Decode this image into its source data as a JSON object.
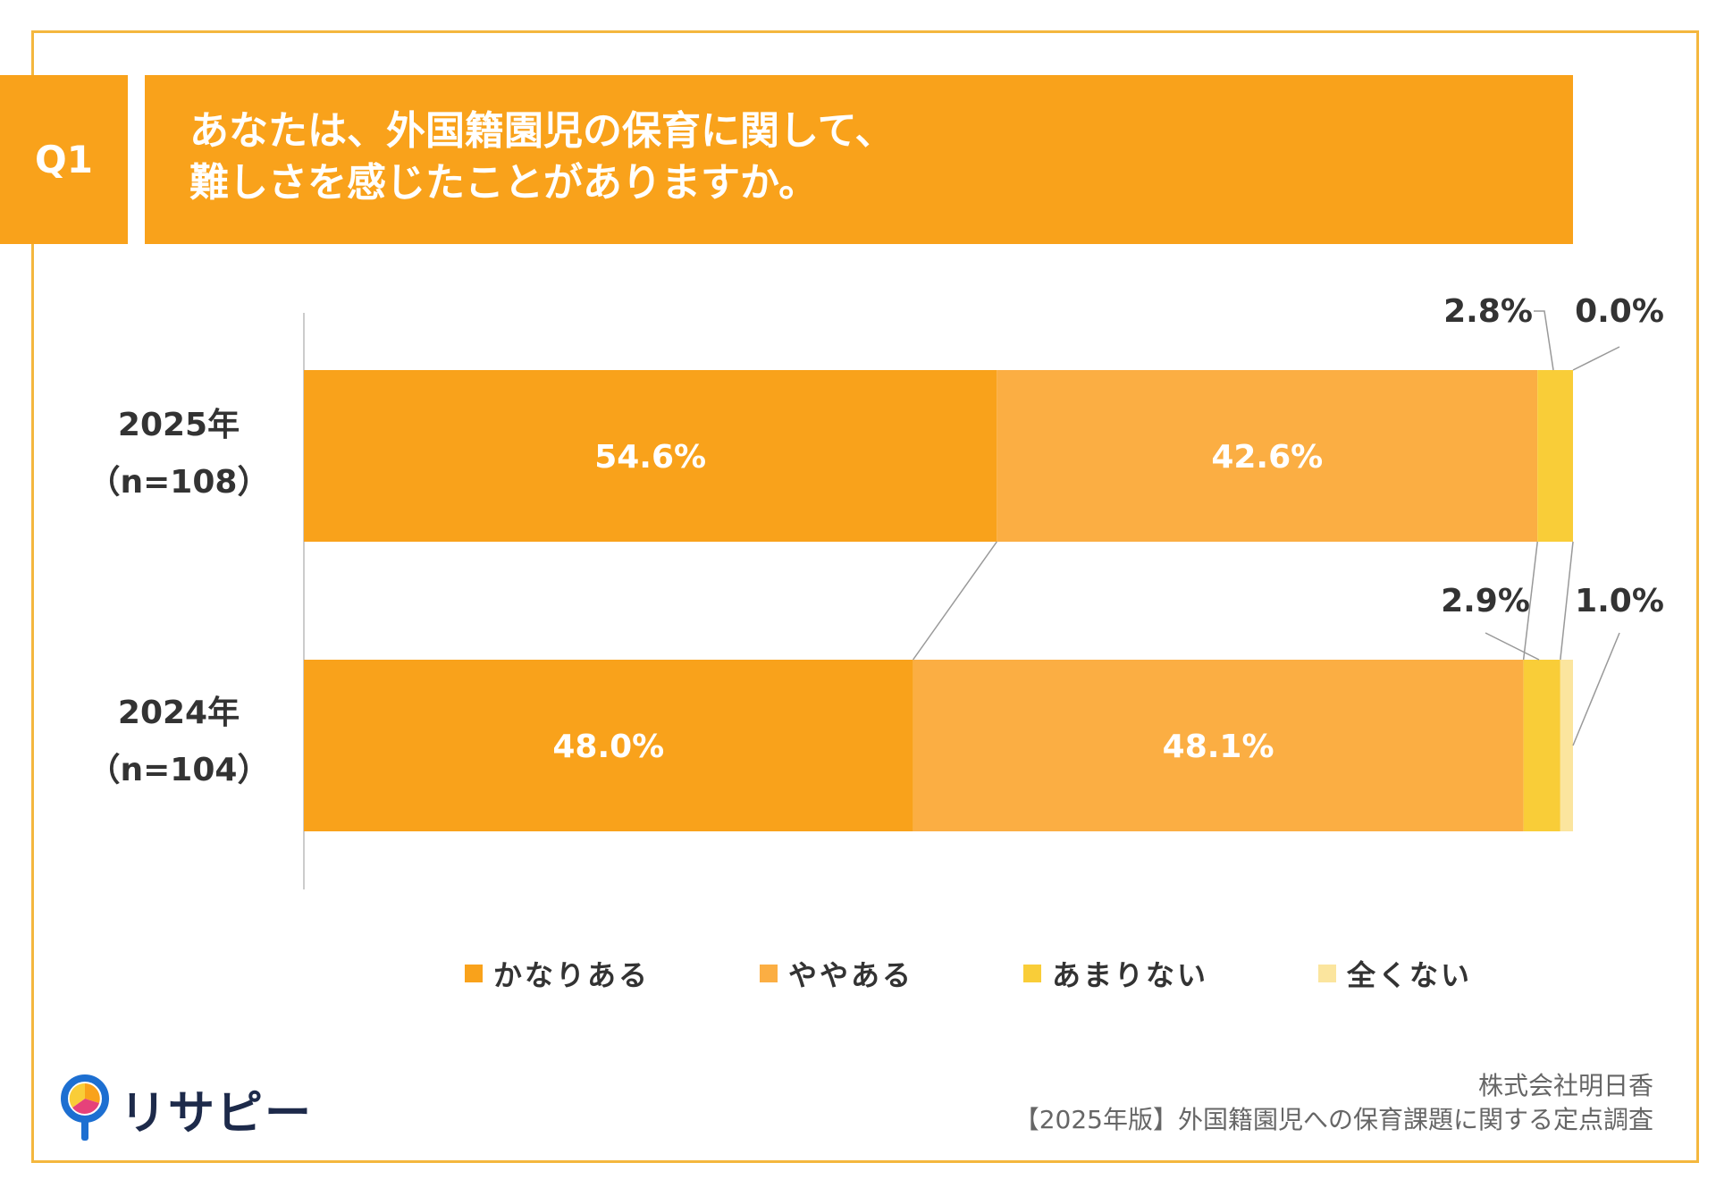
{
  "question": {
    "badge": "Q1",
    "line1": "あなたは、外国籍園児の保育に関して、",
    "line2": "難しさを感じたことがありますか。"
  },
  "rows": [
    {
      "year": "2025年",
      "n": "（n=108）"
    },
    {
      "year": "2024年",
      "n": "（n=104）"
    }
  ],
  "chart_data": {
    "type": "bar",
    "orientation": "horizontal",
    "stacked": true,
    "percent": true,
    "categories": [
      "2025年（n=108）",
      "2024年（n=104）"
    ],
    "series": [
      {
        "name": "かなりある",
        "values": [
          54.6,
          48.0
        ],
        "color": "#F9A21B",
        "labels": [
          "54.6%",
          "48.0%"
        ]
      },
      {
        "name": "ややある",
        "values": [
          42.6,
          48.1
        ],
        "color": "#FBAE43",
        "labels": [
          "42.6%",
          "48.1%"
        ]
      },
      {
        "name": "あまりない",
        "values": [
          2.8,
          2.9
        ],
        "color": "#F9CD38",
        "labels": [
          "2.8%",
          "2.9%"
        ]
      },
      {
        "name": "全くない",
        "values": [
          0.0,
          1.0
        ],
        "color": "#FBE59E",
        "labels": [
          "0.0%",
          "1.0%"
        ]
      }
    ],
    "xlim": [
      0,
      100
    ],
    "legend_position": "bottom"
  },
  "legend": [
    "かなりある",
    "ややある",
    "あまりない",
    "全くない"
  ],
  "brand": {
    "name": "リサピー"
  },
  "credit": {
    "line1": "株式会社明日香",
    "line2": "【2025年版】外国籍園児への保育課題に関する定点調査"
  },
  "colors": {
    "accent": "#F9A21B",
    "frame": "#F4B73E",
    "text": "#333333"
  }
}
